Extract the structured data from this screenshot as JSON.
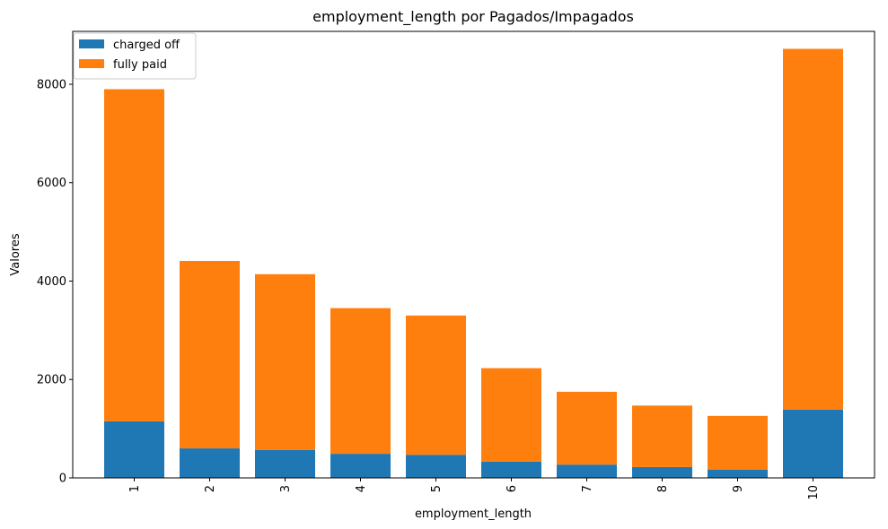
{
  "chart_data": {
    "type": "bar",
    "stacked": true,
    "title": "employment_length por Pagados/Impagados",
    "xlabel": "employment_length",
    "ylabel": "Valores",
    "categories": [
      "1",
      "2",
      "3",
      "4",
      "5",
      "6",
      "7",
      "8",
      "9",
      "10"
    ],
    "series": [
      {
        "name": "charged off",
        "color": "#1f77b4",
        "values": [
          1150,
          600,
          570,
          490,
          470,
          330,
          270,
          220,
          170,
          1390
        ]
      },
      {
        "name": "fully paid",
        "color": "#ff7f0e",
        "values": [
          6750,
          3810,
          3570,
          2960,
          2830,
          1900,
          1480,
          1250,
          1090,
          7330
        ]
      }
    ],
    "ylim": [
      0,
      9075
    ],
    "yticks": [
      0,
      2000,
      4000,
      6000,
      8000
    ],
    "x_tick_rotation": 90,
    "legend": "top-left",
    "grid": false
  }
}
